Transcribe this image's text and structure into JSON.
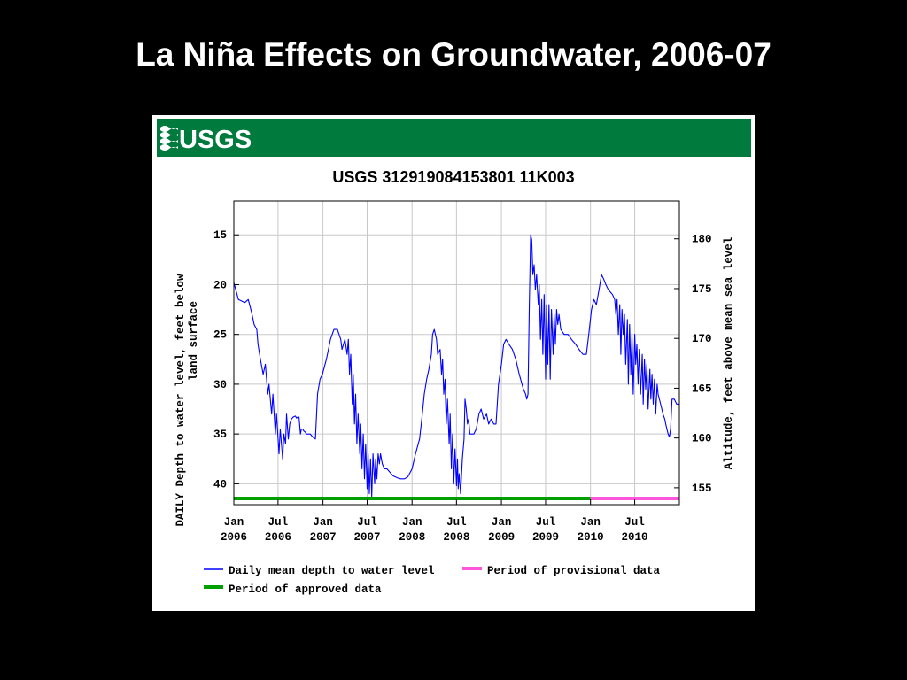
{
  "slide": {
    "title": "La Niña Effects on Groundwater, 2006-07"
  },
  "chart_data": {
    "type": "line",
    "source_logo": "USGS",
    "title": "USGS 312919084153801 11K003",
    "ylabel": "DAILY Depth to water level, feet below land surface",
    "y2label": "Altitude, feet above mean sea level",
    "ylim": [
      42.1,
      11.6
    ],
    "y_inverted": true,
    "y2lim": [
      153.3,
      183.8
    ],
    "yticks": [
      15,
      20,
      25,
      30,
      35,
      40
    ],
    "y2ticks": [
      155,
      160,
      165,
      170,
      175,
      180
    ],
    "xlim": [
      "2006-01-01",
      "2010-12-31"
    ],
    "xticks": [
      {
        "date": "2006-01-01",
        "month": "Jan",
        "year": "2006"
      },
      {
        "date": "2006-07-01",
        "month": "Jul",
        "year": "2006"
      },
      {
        "date": "2007-01-01",
        "month": "Jan",
        "year": "2007"
      },
      {
        "date": "2007-07-01",
        "month": "Jul",
        "year": "2007"
      },
      {
        "date": "2008-01-01",
        "month": "Jan",
        "year": "2008"
      },
      {
        "date": "2008-07-01",
        "month": "Jul",
        "year": "2008"
      },
      {
        "date": "2009-01-01",
        "month": "Jan",
        "year": "2009"
      },
      {
        "date": "2009-07-01",
        "month": "Jul",
        "year": "2009"
      },
      {
        "date": "2010-01-01",
        "month": "Jan",
        "year": "2010"
      },
      {
        "date": "2010-07-01",
        "month": "Jul",
        "year": "2010"
      }
    ],
    "grid": true,
    "legend_position": "bottom",
    "series": [
      {
        "name": "Daily mean depth to water level",
        "color": "#0000ff",
        "x": [
          "2006-01-01",
          "2006-01-20",
          "2006-02-15",
          "2006-03-01",
          "2006-03-15",
          "2006-03-25",
          "2006-04-05",
          "2006-04-10",
          "2006-04-20",
          "2006-05-01",
          "2006-05-10",
          "2006-05-20",
          "2006-05-25",
          "2006-06-05",
          "2006-06-10",
          "2006-06-20",
          "2006-06-25",
          "2006-07-05",
          "2006-07-10",
          "2006-07-20",
          "2006-07-25",
          "2006-08-01",
          "2006-08-05",
          "2006-08-12",
          "2006-08-18",
          "2006-08-25",
          "2006-09-01",
          "2006-09-10",
          "2006-09-15",
          "2006-09-20",
          "2006-09-25",
          "2006-10-01",
          "2006-10-05",
          "2006-10-10",
          "2006-10-15",
          "2006-10-20",
          "2006-10-25",
          "2006-11-01",
          "2006-11-10",
          "2006-11-20",
          "2006-12-01",
          "2006-12-10",
          "2006-12-20",
          "2006-12-30",
          "2007-01-15",
          "2007-02-01",
          "2007-02-15",
          "2007-03-01",
          "2007-03-15",
          "2007-03-20",
          "2007-04-01",
          "2007-04-10",
          "2007-04-15",
          "2007-04-20",
          "2007-04-25",
          "2007-05-01",
          "2007-05-05",
          "2007-05-10",
          "2007-05-15",
          "2007-05-20",
          "2007-05-25",
          "2007-06-01",
          "2007-06-05",
          "2007-06-10",
          "2007-06-15",
          "2007-06-20",
          "2007-06-25",
          "2007-07-01",
          "2007-07-05",
          "2007-07-10",
          "2007-07-15",
          "2007-07-20",
          "2007-07-25",
          "2007-08-01",
          "2007-08-05",
          "2007-08-10",
          "2007-08-15",
          "2007-08-20",
          "2007-08-25",
          "2007-09-01",
          "2007-09-10",
          "2007-09-20",
          "2007-10-01",
          "2007-10-15",
          "2007-11-01",
          "2007-11-15",
          "2007-12-01",
          "2007-12-15",
          "2008-01-01",
          "2008-01-15",
          "2008-02-01",
          "2008-02-10",
          "2008-02-20",
          "2008-03-01",
          "2008-03-10",
          "2008-03-20",
          "2008-03-25",
          "2008-04-01",
          "2008-04-10",
          "2008-04-15",
          "2008-04-25",
          "2008-05-01",
          "2008-05-05",
          "2008-05-10",
          "2008-05-15",
          "2008-05-20",
          "2008-05-25",
          "2008-06-01",
          "2008-06-05",
          "2008-06-10",
          "2008-06-15",
          "2008-06-20",
          "2008-06-25",
          "2008-07-01",
          "2008-07-05",
          "2008-07-08",
          "2008-07-12",
          "2008-07-18",
          "2008-07-25",
          "2008-08-01",
          "2008-08-05",
          "2008-08-10",
          "2008-08-15",
          "2008-08-20",
          "2008-08-25",
          "2008-09-01",
          "2008-09-10",
          "2008-09-20",
          "2008-10-01",
          "2008-10-10",
          "2008-10-20",
          "2008-11-01",
          "2008-11-10",
          "2008-11-20",
          "2008-12-01",
          "2008-12-10",
          "2008-12-20",
          "2009-01-01",
          "2009-01-10",
          "2009-01-20",
          "2009-02-01",
          "2009-02-15",
          "2009-03-01",
          "2009-03-15",
          "2009-04-01",
          "2009-04-10",
          "2009-04-15",
          "2009-04-20",
          "2009-04-25",
          "2009-05-01",
          "2009-05-05",
          "2009-05-10",
          "2009-05-15",
          "2009-05-20",
          "2009-05-25",
          "2009-06-01",
          "2009-06-05",
          "2009-06-10",
          "2009-06-15",
          "2009-06-20",
          "2009-06-25",
          "2009-07-01",
          "2009-07-05",
          "2009-07-10",
          "2009-07-15",
          "2009-07-20",
          "2009-07-25",
          "2009-08-01",
          "2009-08-05",
          "2009-08-10",
          "2009-08-15",
          "2009-08-20",
          "2009-08-25",
          "2009-09-01",
          "2009-09-15",
          "2009-10-01",
          "2009-10-15",
          "2009-11-01",
          "2009-11-15",
          "2009-12-01",
          "2009-12-15",
          "2009-12-25",
          "2010-01-05",
          "2010-01-15",
          "2010-01-25",
          "2010-02-05",
          "2010-02-15",
          "2010-02-25",
          "2010-03-05",
          "2010-03-15",
          "2010-04-01",
          "2010-04-10",
          "2010-04-15",
          "2010-04-20",
          "2010-04-25",
          "2010-05-01",
          "2010-05-05",
          "2010-05-10",
          "2010-05-15",
          "2010-05-20",
          "2010-05-25",
          "2010-06-01",
          "2010-06-05",
          "2010-06-10",
          "2010-06-15",
          "2010-06-20",
          "2010-06-25",
          "2010-07-01",
          "2010-07-05",
          "2010-07-10",
          "2010-07-15",
          "2010-07-20",
          "2010-07-25",
          "2010-08-01",
          "2010-08-05",
          "2010-08-10",
          "2010-08-15",
          "2010-08-20",
          "2010-08-25",
          "2010-09-01",
          "2010-09-05",
          "2010-09-10",
          "2010-09-15",
          "2010-09-20",
          "2010-09-25",
          "2010-10-01",
          "2010-10-05",
          "2010-10-10",
          "2010-10-15",
          "2010-10-20",
          "2010-10-25",
          "2010-11-01",
          "2010-11-05",
          "2010-11-10",
          "2010-11-15",
          "2010-11-20",
          "2010-11-25",
          "2010-12-01",
          "2010-12-10",
          "2010-12-20",
          "2010-12-31"
        ],
        "y": [
          19.8,
          21.5,
          21.8,
          21.5,
          22.8,
          24.0,
          24.5,
          26.0,
          27.5,
          29.0,
          28.0,
          31.0,
          30.0,
          33.0,
          31.0,
          35.0,
          33.0,
          37.0,
          34.5,
          37.5,
          35.0,
          36.0,
          33.0,
          35.5,
          34.0,
          33.5,
          33.3,
          33.2,
          33.4,
          33.3,
          33.3,
          35.0,
          34.5,
          34.5,
          34.7,
          34.8,
          35.0,
          35.0,
          35.0,
          35.3,
          35.5,
          31.0,
          29.5,
          29.0,
          27.5,
          25.5,
          24.5,
          24.5,
          25.5,
          26.5,
          25.5,
          27.0,
          25.5,
          29.0,
          27.0,
          32.0,
          29.0,
          34.0,
          31.0,
          36.0,
          33.0,
          37.0,
          34.0,
          38.5,
          35.0,
          39.5,
          36.0,
          40.5,
          37.0,
          41.0,
          37.5,
          41.3,
          37.0,
          40.0,
          37.5,
          39.5,
          37.0,
          38.0,
          37.0,
          38.0,
          38.5,
          38.5,
          38.8,
          39.2,
          39.4,
          39.5,
          39.5,
          39.3,
          38.5,
          37.0,
          35.5,
          33.5,
          31.0,
          29.5,
          28.5,
          27.0,
          25.0,
          24.5,
          25.5,
          27.0,
          26.5,
          29.0,
          27.5,
          31.0,
          29.5,
          34.0,
          31.5,
          36.0,
          33.0,
          38.5,
          35.0,
          40.0,
          36.5,
          40.2,
          37.5,
          40.5,
          39.0,
          41.0,
          37.5,
          35.5,
          31.5,
          32.5,
          34.0,
          33.5,
          35.0,
          35.0,
          35.0,
          34.5,
          33.0,
          32.5,
          33.5,
          33.0,
          34.0,
          33.5,
          34.0,
          34.0,
          30.0,
          28.0,
          26.0,
          25.5,
          26.0,
          26.5,
          27.5,
          29.0,
          30.5,
          31.0,
          31.5,
          31.0,
          22.5,
          15.0,
          15.5,
          19.0,
          18.0,
          20.5,
          19.0,
          22.0,
          20.0,
          25.5,
          21.5,
          27.0,
          21.0,
          29.5,
          22.0,
          28.0,
          22.0,
          29.5,
          22.5,
          27.0,
          23.0,
          26.0,
          22.5,
          24.0,
          23.0,
          24.5,
          25.0,
          25.0,
          25.5,
          26.0,
          26.5,
          27.0,
          27.0,
          25.0,
          22.5,
          21.5,
          22.0,
          20.5,
          19.0,
          19.5,
          20.0,
          20.5,
          21.0,
          21.5,
          23.0,
          21.5,
          25.0,
          22.0,
          27.0,
          22.5,
          25.0,
          23.0,
          28.0,
          23.5,
          30.0,
          24.0,
          29.0,
          25.0,
          31.0,
          25.0,
          28.0,
          26.0,
          30.0,
          26.5,
          31.0,
          27.0,
          32.0,
          27.5,
          30.5,
          28.0,
          32.5,
          28.5,
          31.5,
          29.0,
          32.0,
          29.5,
          33.0,
          30.0,
          31.0,
          31.5,
          32.0,
          32.5,
          33.0,
          33.5,
          34.0,
          34.5,
          35.0,
          35.3,
          34.5,
          31.5,
          31.5,
          32.0,
          32.0
        ]
      },
      {
        "name": "Period of approved data",
        "color": "#00a000",
        "x": [
          "2006-01-01",
          "2010-01-01"
        ]
      },
      {
        "name": "Period of provisional data",
        "color": "#ff55dd",
        "x": [
          "2010-01-01",
          "2010-12-31"
        ]
      }
    ]
  },
  "colors": {
    "background": "#000000",
    "panel": "#ffffff",
    "usgs_banner": "#007b3d",
    "grid": "#c8c8c8",
    "series": "#0000ff",
    "approved": "#00a000",
    "provisional": "#ff55dd"
  }
}
